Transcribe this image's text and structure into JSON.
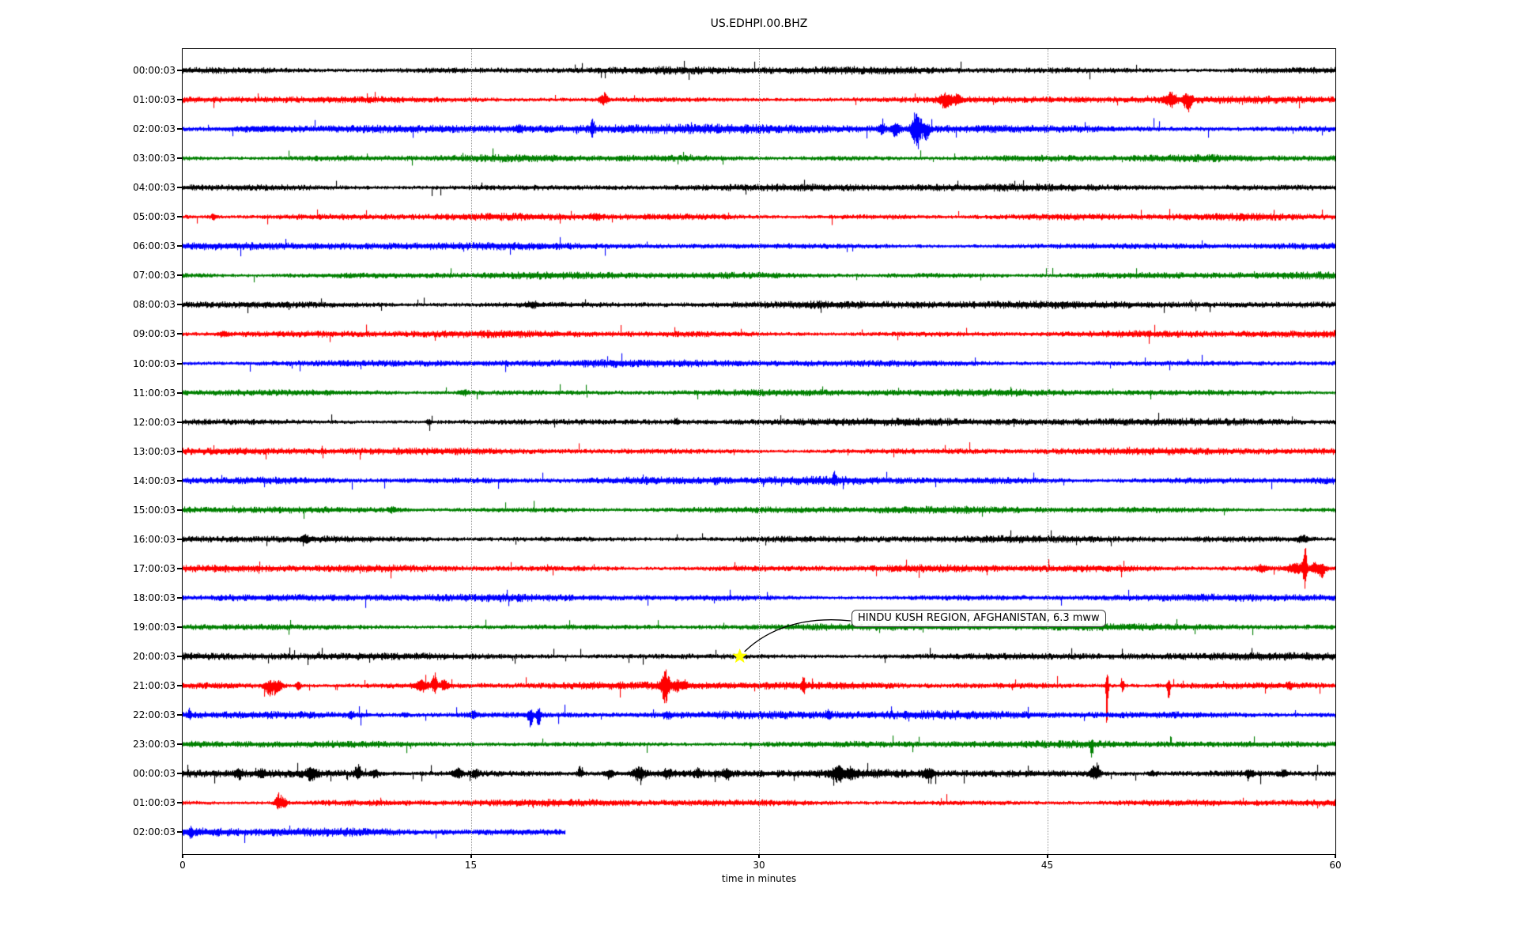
{
  "chart_data": {
    "type": "line",
    "subtype": "seismic-helicorder-dayplot",
    "title": "US.EDHPI.00.BHZ",
    "xlabel": "time in minutes",
    "xlim": [
      0,
      60
    ],
    "x_ticks": [
      0,
      15,
      30,
      45,
      60
    ],
    "grid_minutes": [
      15,
      30,
      45
    ],
    "grid_style": "dotted",
    "legend": "none",
    "color_cycle": [
      "#000000",
      "#ff0000",
      "#0000ff",
      "#008000"
    ],
    "rows": [
      {
        "label": "00:00:03",
        "color": "#000000",
        "duration": 60,
        "noise": 1.1,
        "spiky": 1,
        "events": []
      },
      {
        "label": "01:00:03",
        "color": "#ff0000",
        "duration": 60,
        "noise": 1.0,
        "spiky": 1,
        "events": [
          [
            21.9,
            7,
            0.2
          ],
          [
            39.7,
            6,
            0.35,
            6,
            10
          ],
          [
            40.3,
            5,
            0.2
          ],
          [
            51.4,
            7,
            0.3
          ],
          [
            52.3,
            6,
            0.2,
            8,
            16
          ]
        ]
      },
      {
        "label": "02:00:03",
        "color": "#0000ff",
        "duration": 60,
        "noise": 1.25,
        "spiky": 1.3,
        "events": [
          [
            4.0,
            2,
            1.5
          ],
          [
            17.5,
            4,
            0.2
          ],
          [
            21.3,
            4,
            0.1,
            12,
            10
          ],
          [
            36.4,
            4,
            0.12,
            12,
            6
          ],
          [
            37.1,
            5,
            0.2,
            8,
            10
          ],
          [
            38.2,
            6,
            0.25,
            24,
            27
          ],
          [
            38.7,
            5,
            0.15,
            6,
            13
          ]
        ]
      },
      {
        "label": "03:00:03",
        "color": "#008000",
        "duration": 60,
        "noise": 1.0,
        "spiky": 1,
        "events": []
      },
      {
        "label": "04:00:03",
        "color": "#000000",
        "duration": 60,
        "noise": 1.05,
        "spiky": 1,
        "events": []
      },
      {
        "label": "05:00:03",
        "color": "#ff0000",
        "duration": 60,
        "noise": 1.0,
        "spiky": 1,
        "events": [
          [
            1.6,
            3,
            0.2
          ],
          [
            21.5,
            3,
            0.25
          ]
        ]
      },
      {
        "label": "06:00:03",
        "color": "#0000ff",
        "duration": 60,
        "noise": 1.05,
        "spiky": 1,
        "events": []
      },
      {
        "label": "07:00:03",
        "color": "#008000",
        "duration": 60,
        "noise": 1.0,
        "spiky": 1,
        "events": []
      },
      {
        "label": "08:00:03",
        "color": "#000000",
        "duration": 60,
        "noise": 1.1,
        "spiky": 1,
        "events": [
          [
            18.2,
            3,
            0.3
          ]
        ]
      },
      {
        "label": "09:00:03",
        "color": "#ff0000",
        "duration": 60,
        "noise": 1.0,
        "spiky": 1,
        "events": [
          [
            2.1,
            3,
            0.2
          ]
        ]
      },
      {
        "label": "10:00:03",
        "color": "#0000ff",
        "duration": 60,
        "noise": 1.05,
        "spiky": 1,
        "events": []
      },
      {
        "label": "11:00:03",
        "color": "#008000",
        "duration": 60,
        "noise": 1.0,
        "spiky": 1,
        "events": [
          [
            14.6,
            3,
            0.25
          ]
        ]
      },
      {
        "label": "12:00:03",
        "color": "#000000",
        "duration": 60,
        "noise": 1.05,
        "spiky": 1,
        "events": [
          [
            12.8,
            3,
            0.15
          ],
          [
            25.7,
            4,
            0.12
          ]
        ]
      },
      {
        "label": "13:00:03",
        "color": "#ff0000",
        "duration": 60,
        "noise": 1.0,
        "spiky": 1,
        "events": []
      },
      {
        "label": "14:00:03",
        "color": "#0000ff",
        "duration": 60,
        "noise": 1.15,
        "spiky": 1.2,
        "events": [
          [
            27.7,
            3,
            0.12
          ],
          [
            33.9,
            3,
            0.1,
            9,
            5
          ]
        ]
      },
      {
        "label": "15:00:03",
        "color": "#008000",
        "duration": 60,
        "noise": 1.0,
        "spiky": 1,
        "events": [
          [
            10.9,
            3,
            0.2
          ]
        ]
      },
      {
        "label": "16:00:03",
        "color": "#000000",
        "duration": 60,
        "noise": 1.0,
        "spiky": 1,
        "events": [
          [
            6.4,
            3,
            0.2
          ],
          [
            58.3,
            4,
            0.3
          ]
        ]
      },
      {
        "label": "17:00:03",
        "color": "#ff0000",
        "duration": 60,
        "noise": 1.05,
        "spiky": 1,
        "events": [
          [
            56.2,
            4,
            0.25
          ],
          [
            58.0,
            6,
            0.5
          ],
          [
            58.4,
            4,
            0.08,
            42,
            33
          ],
          [
            58.9,
            6,
            0.2
          ],
          [
            59.3,
            5,
            0.2,
            6,
            11
          ]
        ]
      },
      {
        "label": "18:00:03",
        "color": "#0000ff",
        "duration": 60,
        "noise": 1.05,
        "spiky": 1,
        "events": []
      },
      {
        "label": "19:00:03",
        "color": "#008000",
        "duration": 60,
        "noise": 1.0,
        "spiky": 1,
        "events": []
      },
      {
        "label": "20:00:03",
        "color": "#000000",
        "duration": 60,
        "noise": 1.05,
        "spiky": 1,
        "events": []
      },
      {
        "label": "21:00:03",
        "color": "#ff0000",
        "duration": 60,
        "noise": 1.1,
        "spiky": 1.5,
        "events": [
          [
            4.6,
            7,
            0.3,
            6,
            15
          ],
          [
            5.0,
            6,
            0.2
          ],
          [
            6.0,
            5,
            0.12
          ],
          [
            12.4,
            7,
            0.3
          ],
          [
            13.1,
            5,
            0.12,
            19,
            9
          ],
          [
            13.6,
            5,
            0.2
          ],
          [
            25.1,
            7,
            0.2,
            19,
            21
          ],
          [
            25.7,
            6,
            0.2
          ],
          [
            26.1,
            4,
            0.15
          ],
          [
            32.3,
            3,
            0.08,
            13,
            11
          ],
          [
            48.1,
            0,
            0.06,
            32,
            74
          ],
          [
            48.9,
            4,
            0.08,
            15,
            7
          ],
          [
            51.3,
            3,
            0.08,
            5,
            21
          ],
          [
            57.6,
            4,
            0.15
          ]
        ]
      },
      {
        "label": "22:00:03",
        "color": "#0000ff",
        "duration": 60,
        "noise": 1.2,
        "spiky": 1.4,
        "events": [
          [
            0.35,
            5,
            0.08,
            9,
            5
          ],
          [
            8.8,
            4,
            0.15
          ],
          [
            11.6,
            3,
            0.15
          ],
          [
            15.1,
            4,
            0.2
          ],
          [
            18.1,
            3,
            0.12,
            5,
            15
          ],
          [
            18.5,
            3,
            0.12,
            7,
            13
          ],
          [
            25.2,
            3,
            0.2
          ],
          [
            33.6,
            3,
            0.15
          ]
        ]
      },
      {
        "label": "23:00:03",
        "color": "#008000",
        "duration": 60,
        "noise": 1.0,
        "spiky": 1,
        "events": [
          [
            47.3,
            2,
            0.08,
            5,
            19
          ]
        ]
      },
      {
        "label": "00:00:03",
        "color": "#000000",
        "duration": 60,
        "noise": 1.2,
        "spiky": 3,
        "events": [
          [
            2.9,
            5,
            0.2
          ],
          [
            4.1,
            4,
            0.2
          ],
          [
            6.7,
            7,
            0.25
          ],
          [
            9.1,
            4,
            0.15,
            11,
            5
          ],
          [
            10.0,
            4,
            0.2
          ],
          [
            14.3,
            6,
            0.25
          ],
          [
            15.2,
            5,
            0.2
          ],
          [
            20.7,
            4,
            0.15,
            9,
            4
          ],
          [
            22.2,
            5,
            0.2
          ],
          [
            23.7,
            8,
            0.25
          ],
          [
            25.2,
            4,
            0.2
          ],
          [
            26.8,
            4,
            0.15
          ],
          [
            28.3,
            5,
            0.2
          ],
          [
            34.1,
            8,
            0.3
          ],
          [
            34.8,
            6,
            0.2
          ],
          [
            38.8,
            6,
            0.25
          ],
          [
            47.5,
            7,
            0.25,
            11,
            7
          ],
          [
            50.5,
            3,
            0.2
          ],
          [
            55.5,
            4,
            0.2
          ],
          [
            57.3,
            4,
            0.2
          ]
        ]
      },
      {
        "label": "01:00:03",
        "color": "#ff0000",
        "duration": 60,
        "noise": 1.0,
        "spiky": 1,
        "events": [
          [
            5.0,
            7,
            0.2,
            13,
            9
          ],
          [
            5.3,
            5,
            0.12
          ]
        ]
      },
      {
        "label": "02:00:03",
        "color": "#0000ff",
        "duration": 19.9,
        "noise": 1.25,
        "spiky": 1.2,
        "events": [
          [
            0.4,
            5,
            0.08
          ]
        ]
      }
    ],
    "annotation": {
      "text": "HINDU KUSH REGION, AFGHANISTAN, 6.3 mww",
      "row_index": 20,
      "row_label": "20:00:03",
      "minute": 29.0,
      "marker": "yellow-star",
      "marker_color": "#ffff00"
    }
  }
}
